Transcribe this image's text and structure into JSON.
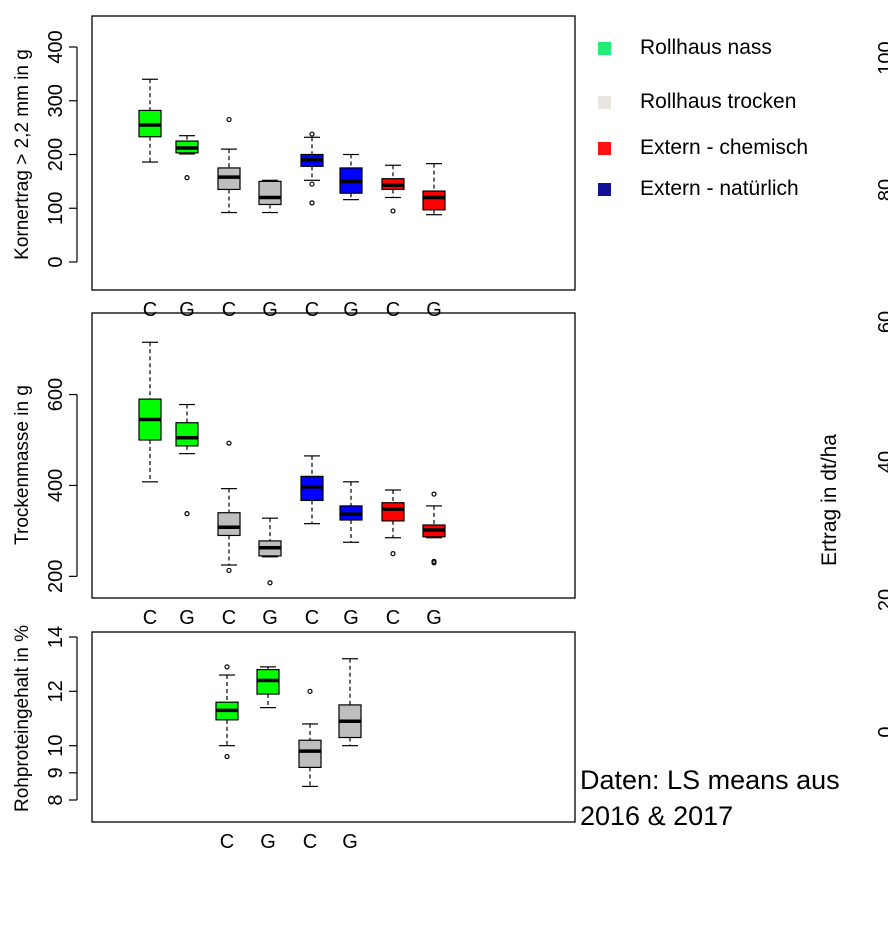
{
  "legend": [
    {
      "label": "Rollhaus nass",
      "color": "#22ee77"
    },
    {
      "label": "Rollhaus trocken",
      "color": "#e8e4df"
    },
    {
      "label": "Extern - chemisch",
      "color": "#ff1111"
    },
    {
      "label": "Extern - natürlich",
      "color": "#111199"
    }
  ],
  "note": {
    "line1": "Daten: LS means aus",
    "line2": "2016 & 2017"
  },
  "right_panel": {
    "ylabel": "Ertrag in dt/ha",
    "tick_labels": [
      "0",
      "20",
      "40",
      "60",
      "80",
      "100"
    ]
  },
  "chart_data": [
    {
      "type": "box",
      "ylabel": "Kornertrag > 2,2 mm in g",
      "ylim": [
        0,
        400
      ],
      "yticks": [
        0,
        100,
        200,
        300,
        400
      ],
      "categories": [
        "C",
        "G",
        "C",
        "G",
        "C",
        "G",
        "C",
        "G"
      ],
      "boxes": [
        {
          "category": "C",
          "group": "Rollhaus nass",
          "color": "#00ff00",
          "min": 186,
          "q1": 233,
          "median": 255,
          "q3": 282,
          "max": 340,
          "outliers": []
        },
        {
          "category": "G",
          "group": "Rollhaus nass",
          "color": "#00ff00",
          "min": 201,
          "q1": 203,
          "median": 212,
          "q3": 225,
          "max": 235,
          "outliers": [
            157
          ]
        },
        {
          "category": "C",
          "group": "Rollhaus trocken",
          "color": "#bebebe",
          "min": 92,
          "q1": 135,
          "median": 158,
          "q3": 175,
          "max": 210,
          "outliers": [
            265
          ]
        },
        {
          "category": "G",
          "group": "Rollhaus trocken",
          "color": "#bebebe",
          "min": 92,
          "q1": 107,
          "median": 120,
          "q3": 150,
          "max": 152,
          "outliers": []
        },
        {
          "category": "C",
          "group": "Extern - natürlich",
          "color": "#0000ff",
          "min": 152,
          "q1": 178,
          "median": 190,
          "q3": 200,
          "max": 232,
          "outliers": [
            110,
            145,
            238
          ]
        },
        {
          "category": "G",
          "group": "Extern - natürlich",
          "color": "#0000ff",
          "min": 116,
          "q1": 128,
          "median": 150,
          "q3": 175,
          "max": 200,
          "outliers": []
        },
        {
          "category": "C",
          "group": "Extern - chemisch",
          "color": "#ff0000",
          "min": 120,
          "q1": 135,
          "median": 143,
          "q3": 155,
          "max": 180,
          "outliers": [
            95
          ]
        },
        {
          "category": "G",
          "group": "Extern - chemisch",
          "color": "#ff0000",
          "min": 88,
          "q1": 97,
          "median": 120,
          "q3": 132,
          "max": 183,
          "outliers": []
        }
      ]
    },
    {
      "type": "box",
      "ylabel": "Trockenmasse in g",
      "ylim": [
        170,
        720
      ],
      "yticks": [
        200,
        400,
        600
      ],
      "categories": [
        "C",
        "G",
        "C",
        "G",
        "C",
        "G",
        "C",
        "G"
      ],
      "boxes": [
        {
          "category": "C",
          "group": "Rollhaus nass",
          "color": "#00ff00",
          "min": 408,
          "q1": 500,
          "median": 545,
          "q3": 590,
          "max": 715,
          "outliers": []
        },
        {
          "category": "G",
          "group": "Rollhaus nass",
          "color": "#00ff00",
          "min": 470,
          "q1": 487,
          "median": 505,
          "q3": 538,
          "max": 578,
          "outliers": [
            338
          ]
        },
        {
          "category": "C",
          "group": "Rollhaus trocken",
          "color": "#bebebe",
          "min": 225,
          "q1": 290,
          "median": 308,
          "q3": 340,
          "max": 393,
          "outliers": [
            213,
            493
          ]
        },
        {
          "category": "G",
          "group": "Rollhaus trocken",
          "color": "#bebebe",
          "min": 243,
          "q1": 245,
          "median": 263,
          "q3": 278,
          "max": 328,
          "outliers": [
            186
          ]
        },
        {
          "category": "C",
          "group": "Extern - natürlich",
          "color": "#0000ff",
          "min": 316,
          "q1": 367,
          "median": 397,
          "q3": 420,
          "max": 465,
          "outliers": []
        },
        {
          "category": "G",
          "group": "Extern - natürlich",
          "color": "#0000ff",
          "min": 275,
          "q1": 324,
          "median": 337,
          "q3": 355,
          "max": 408,
          "outliers": []
        },
        {
          "category": "C",
          "group": "Extern - chemisch",
          "color": "#ff0000",
          "min": 285,
          "q1": 322,
          "median": 348,
          "q3": 362,
          "max": 390,
          "outliers": [
            250
          ]
        },
        {
          "category": "G",
          "group": "Extern - chemisch",
          "color": "#ff0000",
          "min": 285,
          "q1": 287,
          "median": 302,
          "q3": 313,
          "max": 355,
          "outliers": [
            230,
            233,
            381
          ]
        }
      ]
    },
    {
      "type": "box",
      "ylabel": "Rohproteingehalt in %",
      "ylim": [
        8,
        14
      ],
      "yticks": [
        8,
        9,
        10,
        12,
        14
      ],
      "categories": [
        "C",
        "G",
        "C",
        "G"
      ],
      "boxes": [
        {
          "category": "C",
          "group": "Rollhaus nass",
          "color": "#00ff00",
          "min": 10.0,
          "q1": 10.95,
          "median": 11.3,
          "q3": 11.6,
          "max": 12.6,
          "outliers": [
            9.6,
            12.9
          ]
        },
        {
          "category": "G",
          "group": "Rollhaus nass",
          "color": "#00ff00",
          "min": 11.4,
          "q1": 11.9,
          "median": 12.4,
          "q3": 12.8,
          "max": 12.9,
          "outliers": []
        },
        {
          "category": "C",
          "group": "Rollhaus trocken",
          "color": "#bebebe",
          "min": 8.5,
          "q1": 9.2,
          "median": 9.8,
          "q3": 10.2,
          "max": 10.8,
          "outliers": [
            12.0
          ]
        },
        {
          "category": "G",
          "group": "Rollhaus trocken",
          "color": "#bebebe",
          "min": 10.0,
          "q1": 10.3,
          "median": 10.9,
          "q3": 11.5,
          "max": 13.2,
          "outliers": []
        }
      ]
    }
  ]
}
